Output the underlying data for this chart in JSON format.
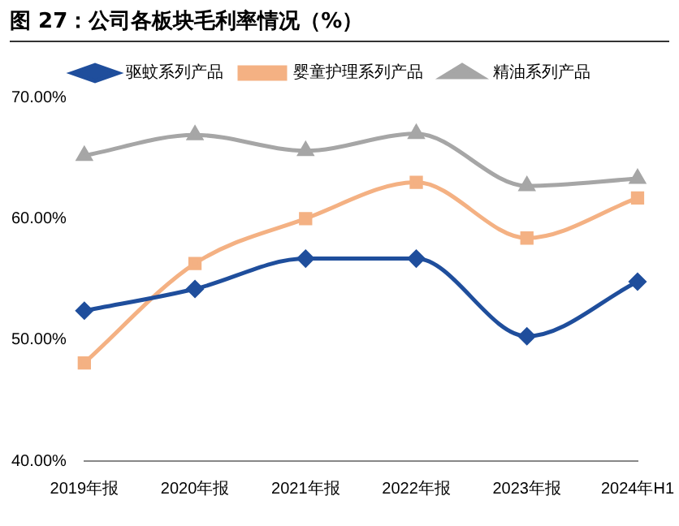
{
  "chart_data": {
    "type": "line",
    "title": "图 27：公司各板块毛利率情况（%）",
    "categories": [
      "2019年报",
      "2020年报",
      "2021年报",
      "2022年报",
      "2023年报",
      "2024年H1"
    ],
    "series": [
      {
        "name": "驱蚊系列产品",
        "color": "#1f4e9c",
        "marker": "diamond",
        "values": [
          52.4,
          54.2,
          56.7,
          56.7,
          50.3,
          54.8
        ]
      },
      {
        "name": "婴童护理系列产品",
        "color": "#f4b183",
        "marker": "square",
        "values": [
          48.1,
          56.3,
          60.0,
          63.0,
          58.4,
          61.7
        ]
      },
      {
        "name": "精油系列产品",
        "color": "#a6a6a6",
        "marker": "triangle",
        "values": [
          65.2,
          66.9,
          65.6,
          67.0,
          62.7,
          63.3
        ]
      }
    ],
    "ylim": [
      40,
      70
    ],
    "yticks": [
      {
        "value": 40,
        "label": "40.00%"
      },
      {
        "value": 50,
        "label": "50.00%"
      },
      {
        "value": 60,
        "label": "60.00%"
      },
      {
        "value": 70,
        "label": "70.00%"
      }
    ],
    "grid": false,
    "legend": "top"
  }
}
